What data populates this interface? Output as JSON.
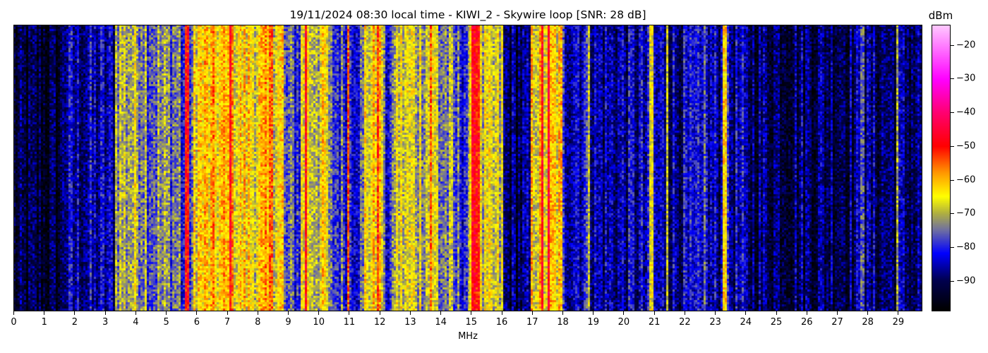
{
  "chart_data": {
    "type": "heatmap",
    "title": "19/11/2024 08:30 local time - KIWI_2 - Skywire loop [SNR: 28 dB]",
    "xlabel": "MHz",
    "xlim": [
      0,
      29.8
    ],
    "xticks": [
      "0",
      "1",
      "2",
      "3",
      "4",
      "5",
      "6",
      "7",
      "8",
      "9",
      "10",
      "11",
      "12",
      "13",
      "14",
      "15",
      "16",
      "17",
      "18",
      "19",
      "20",
      "21",
      "22",
      "23",
      "24",
      "25",
      "26",
      "27",
      "28",
      "29"
    ],
    "colorbar": {
      "label": "dBm",
      "range": [
        -99,
        -14
      ],
      "ticks": [
        "−20",
        "−30",
        "−40",
        "−50",
        "−60",
        "−70",
        "−80",
        "−90"
      ],
      "tick_values": [
        -20,
        -30,
        -40,
        -50,
        -60,
        -70,
        -80,
        -90
      ],
      "colormap": [
        [
          -99,
          "#000000"
        ],
        [
          -90,
          "#000050"
        ],
        [
          -82,
          "#0000ff"
        ],
        [
          -75,
          "#7070a0"
        ],
        [
          -70,
          "#b0b040"
        ],
        [
          -65,
          "#ffff00"
        ],
        [
          -58,
          "#ff9900"
        ],
        [
          -50,
          "#ff0000"
        ],
        [
          -40,
          "#ff0070"
        ],
        [
          -30,
          "#ff00ff"
        ],
        [
          -14,
          "#ffc8ff"
        ]
      ]
    },
    "noise_bands_dBm": [
      {
        "from": 0,
        "to": 1.6,
        "level": -94
      },
      {
        "from": 1.6,
        "to": 3.3,
        "level": -86
      },
      {
        "from": 3.3,
        "to": 4.4,
        "level": -70
      },
      {
        "from": 4.4,
        "to": 5.5,
        "level": -74
      },
      {
        "from": 5.5,
        "to": 5.9,
        "level": -80
      },
      {
        "from": 5.9,
        "to": 7.3,
        "level": -63
      },
      {
        "from": 7.3,
        "to": 8.9,
        "level": -64
      },
      {
        "from": 8.9,
        "to": 9.4,
        "level": -78
      },
      {
        "from": 9.4,
        "to": 10.3,
        "level": -67
      },
      {
        "from": 10.3,
        "to": 11.5,
        "level": -78
      },
      {
        "from": 11.5,
        "to": 12.1,
        "level": -65
      },
      {
        "from": 12.1,
        "to": 12.5,
        "level": -80
      },
      {
        "from": 12.5,
        "to": 13.9,
        "level": -68
      },
      {
        "from": 13.9,
        "to": 14.4,
        "level": -74
      },
      {
        "from": 14.4,
        "to": 15.0,
        "level": -78
      },
      {
        "from": 15.0,
        "to": 16.1,
        "level": -70
      },
      {
        "from": 16.1,
        "to": 17.0,
        "level": -90
      },
      {
        "from": 17.0,
        "to": 18.0,
        "level": -64
      },
      {
        "from": 18.0,
        "to": 19.0,
        "level": -82
      },
      {
        "from": 19.0,
        "to": 24.0,
        "level": -86
      },
      {
        "from": 24.0,
        "to": 29.8,
        "level": -89
      }
    ],
    "signals_dBm": [
      {
        "f": 5.67,
        "level": -50
      },
      {
        "f": 7.1,
        "level": -48
      },
      {
        "f": 8.45,
        "level": -55
      },
      {
        "f": 9.58,
        "level": -48
      },
      {
        "f": 10.97,
        "level": -55
      },
      {
        "f": 11.95,
        "level": -52
      },
      {
        "f": 13.7,
        "level": -55
      },
      {
        "f": 15.1,
        "level": -48
      },
      {
        "f": 15.25,
        "level": -50
      },
      {
        "f": 17.35,
        "level": -48
      },
      {
        "f": 17.55,
        "level": -46
      },
      {
        "f": 18.9,
        "level": -68
      },
      {
        "f": 20.93,
        "level": -66
      },
      {
        "f": 21.45,
        "level": -68
      },
      {
        "f": 22.7,
        "level": -75
      },
      {
        "f": 23.36,
        "level": -62
      },
      {
        "f": 27.85,
        "level": -76
      },
      {
        "f": 29.0,
        "level": -70
      }
    ]
  }
}
